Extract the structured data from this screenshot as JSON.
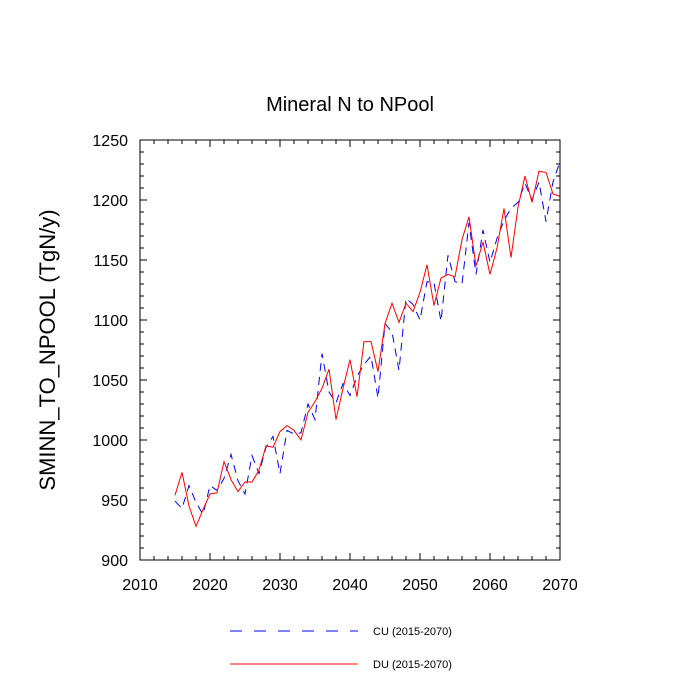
{
  "chart_data": {
    "type": "line",
    "title": "Mineral N to NPool",
    "xlabel": "",
    "ylabel": "SMINN_TO_NPOOL  (TgN/y)",
    "xlim": [
      2010,
      2070
    ],
    "ylim": [
      900,
      1250
    ],
    "xticks": [
      2010,
      2020,
      2030,
      2040,
      2050,
      2060,
      2070
    ],
    "yticks": [
      900,
      950,
      1000,
      1050,
      1100,
      1150,
      1200,
      1250
    ],
    "x": [
      2015,
      2016,
      2017,
      2018,
      2019,
      2020,
      2021,
      2022,
      2023,
      2024,
      2025,
      2026,
      2027,
      2028,
      2029,
      2030,
      2031,
      2032,
      2033,
      2034,
      2035,
      2036,
      2037,
      2038,
      2039,
      2040,
      2041,
      2042,
      2043,
      2044,
      2045,
      2046,
      2047,
      2048,
      2049,
      2050,
      2051,
      2052,
      2053,
      2054,
      2055,
      2056,
      2057,
      2058,
      2059,
      2060,
      2061,
      2062,
      2063,
      2064,
      2065,
      2066,
      2067,
      2068,
      2069,
      2070
    ],
    "series": [
      {
        "name": "CU (2015-2070)",
        "color": "#0000ff",
        "style": "dashed",
        "values": [
          949,
          943,
          962,
          948,
          938,
          962,
          958,
          968,
          988,
          966,
          955,
          987,
          972,
          994,
          1003,
          972,
          1008,
          1005,
          1006,
          1030,
          1017,
          1072,
          1040,
          1031,
          1047,
          1037,
          1053,
          1063,
          1070,
          1035,
          1097,
          1090,
          1058,
          1118,
          1113,
          1100,
          1132,
          1131,
          1099,
          1154,
          1132,
          1130,
          1181,
          1138,
          1175,
          1148,
          1168,
          1183,
          1193,
          1198,
          1214,
          1200,
          1215,
          1182,
          1215,
          1232
        ]
      },
      {
        "name": "DU (2015-2070)",
        "color": "#ff0000",
        "style": "solid",
        "values": [
          954,
          973,
          945,
          928,
          942,
          955,
          956,
          982,
          967,
          957,
          965,
          965,
          975,
          995,
          994,
          1007,
          1012,
          1008,
          1000,
          1023,
          1032,
          1043,
          1059,
          1017,
          1043,
          1067,
          1036,
          1082,
          1082,
          1057,
          1097,
          1114,
          1098,
          1114,
          1107,
          1123,
          1146,
          1112,
          1135,
          1138,
          1136,
          1167,
          1186,
          1145,
          1165,
          1138,
          1160,
          1193,
          1152,
          1194,
          1220,
          1198,
          1224,
          1223,
          1205,
          1203
        ]
      }
    ],
    "legend": [
      {
        "label": "CU (2015-2070)",
        "color": "#0000ff",
        "style": "dashed"
      },
      {
        "label": "DU (2015-2070)",
        "color": "#ff0000",
        "style": "solid"
      }
    ]
  }
}
